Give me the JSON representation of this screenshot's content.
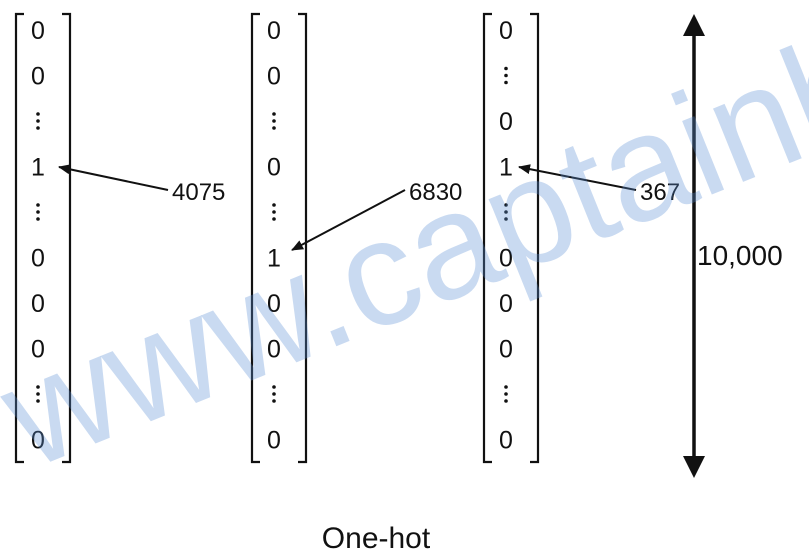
{
  "columns": [
    {
      "entries": [
        "0",
        "0",
        "⋮",
        "1",
        "⋮",
        "0",
        "0",
        "0",
        "⋮",
        "0"
      ],
      "index_label": "4075"
    },
    {
      "entries": [
        "0",
        "0",
        "⋮",
        "0",
        "⋮",
        "1",
        "0",
        "0",
        "⋮",
        "0"
      ],
      "index_label": "6830"
    },
    {
      "entries": [
        "0",
        "⋮",
        "0",
        "1",
        "⋮",
        "0",
        "0",
        "0",
        "⋮",
        "0"
      ],
      "index_label": "367"
    }
  ],
  "dimension_label": "10,000",
  "caption": "One-hot",
  "watermark": "www.captainbed.net",
  "colors": {
    "ink": "#111111",
    "watermark": "#5b8fd6"
  }
}
